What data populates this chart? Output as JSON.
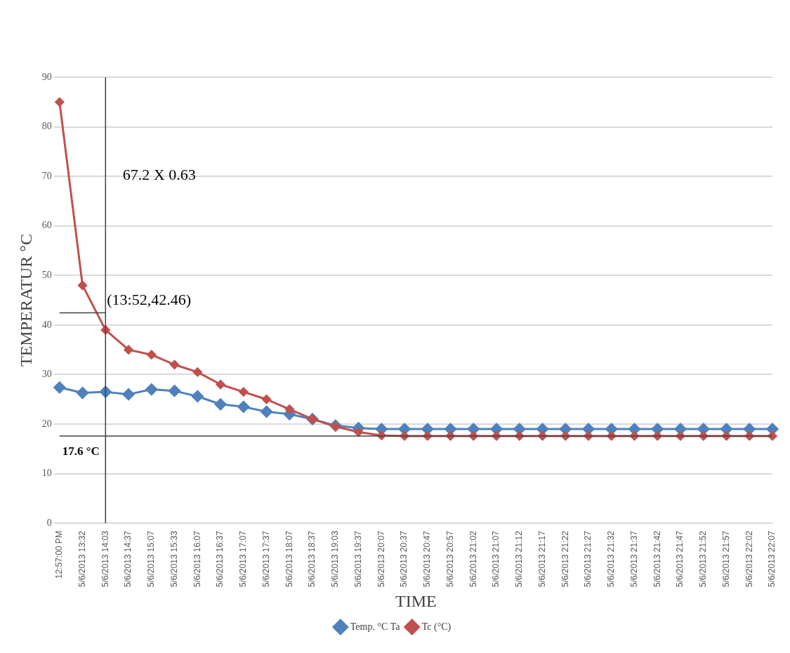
{
  "chart_data": {
    "type": "line",
    "xlabel": "TIME",
    "ylabel": "TEMPERATUR °C",
    "categories": [
      "12:57:00 PM",
      "5/6/2013 13:32",
      "5/6/2013 14:03",
      "5/6/2013 14:37",
      "5/6/2013 15:07",
      "5/6/2013 15:33",
      "5/6/2013 16:07",
      "5/6/2013 16:37",
      "5/6/2013 17:07",
      "5/6/2013 17:37",
      "5/6/2013 18:07",
      "5/6/2013 18:37",
      "5/6/2013 19:03",
      "5/6/2013 19:37",
      "5/6/2013 20:07",
      "5/6/2013 20:37",
      "5/6/2013 20:47",
      "5/6/2013 20:57",
      "5/6/2013 21:02",
      "5/6/2013 21:07",
      "5/6/2013 21:12",
      "5/6/2013 21:17",
      "5/6/2013 21:22",
      "5/6/2013 21:27",
      "5/6/2013 21:32",
      "5/6/2013 21:37",
      "5/6/2013 21:42",
      "5/6/2013 21:47",
      "5/6/2013 21:52",
      "5/6/2013 21:57",
      "5/6/2013 22:02",
      "5/6/2013 22:07"
    ],
    "series": [
      {
        "name": "Temp. °C Ta",
        "color": "#4f81bd",
        "values": [
          27.4,
          26.3,
          26.5,
          26,
          27,
          26.7,
          25.6,
          24,
          23.5,
          22.5,
          22,
          21,
          19.7,
          19.2,
          19,
          19,
          19,
          19,
          19,
          19,
          19,
          19,
          19,
          19,
          19,
          19,
          19,
          19,
          19,
          19,
          19,
          19
        ]
      },
      {
        "name": "Tc (°C)",
        "color": "#c0504d",
        "values": [
          85,
          48,
          39,
          35,
          34,
          32,
          30.5,
          28,
          26.5,
          25,
          23,
          21,
          19.5,
          18.4,
          17.7,
          17.6,
          17.6,
          17.6,
          17.6,
          17.6,
          17.6,
          17.6,
          17.6,
          17.6,
          17.6,
          17.6,
          17.6,
          17.6,
          17.6,
          17.6,
          17.6,
          17.6
        ]
      },
      {
        "color": "#404040",
        "marker": "none",
        "values": [
          42.46,
          42.46,
          42.46,
          null,
          null,
          null,
          null,
          null,
          null,
          null,
          null,
          null,
          null,
          null,
          null,
          null,
          null,
          null,
          null,
          null,
          null,
          null,
          null,
          null,
          null,
          null,
          null,
          null,
          null,
          null,
          null,
          null
        ]
      }
    ],
    "ref_lines": [
      {
        "axis": "y",
        "value": 17.6,
        "label": "17.6 °C",
        "color": "#404040"
      },
      {
        "axis": "x",
        "value": "5/6/2013 14:03",
        "color": "#404040"
      }
    ],
    "annotations": [
      "67.2 X 0.63",
      {
        "text": "(13:52,42.46)",
        "x": "5/6/2013 14:03",
        "y": 42.46
      }
    ],
    "ylim": [
      0,
      90
    ],
    "yticks": [
      0,
      10,
      20,
      30,
      40,
      50,
      60,
      70,
      80,
      90
    ],
    "grid": "y",
    "legend": "bottom",
    "marker": "diamond",
    "line_style": "solid"
  }
}
